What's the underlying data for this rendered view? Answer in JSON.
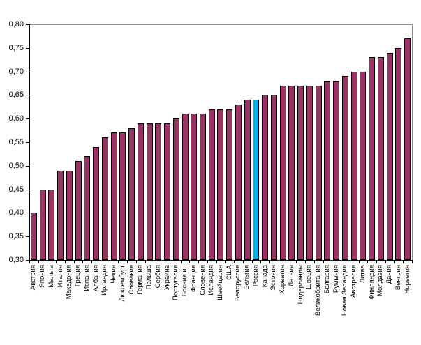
{
  "chart_data": {
    "type": "bar",
    "title": "",
    "xlabel": "",
    "ylabel": "",
    "categories": [
      "Австрия",
      "Япония",
      "Мальта",
      "Италия",
      "Македония",
      "Греция",
      "Испания",
      "Албания",
      "Ирландия",
      "Чехия",
      "Люксембург",
      "Словакия",
      "Германия",
      "Польша",
      "Сербия",
      "Украина",
      "Португалия",
      "Босния и..",
      "Франция",
      "Словения",
      "Исландия",
      "Швейцария",
      "США",
      "Белоруссия",
      "Бельгия",
      "Россия",
      "Канада",
      "Эстония",
      "Хорватия",
      "Латвия",
      "Нидерланды",
      "Швеция",
      "Великобритания",
      "Болгария",
      "Румыния",
      "Новая Зеландия",
      "Австралия",
      "Литва",
      "Финляндия",
      "Молдавия",
      "Дания",
      "Венгрия",
      "Норвегия"
    ],
    "values": [
      0.4,
      0.45,
      0.45,
      0.49,
      0.49,
      0.51,
      0.52,
      0.54,
      0.56,
      0.57,
      0.57,
      0.58,
      0.59,
      0.59,
      0.59,
      0.59,
      0.6,
      0.61,
      0.61,
      0.61,
      0.62,
      0.62,
      0.62,
      0.63,
      0.64,
      0.64,
      0.65,
      0.65,
      0.67,
      0.67,
      0.67,
      0.67,
      0.67,
      0.68,
      0.68,
      0.69,
      0.7,
      0.7,
      0.73,
      0.73,
      0.74,
      0.75,
      0.77
    ],
    "highlight": {
      "category": "Россия",
      "index": 25,
      "color": "#00B0F0"
    },
    "bar_color": "#993366",
    "bar_border_color": "#000000",
    "y_axis": {
      "min": 0.3,
      "max": 0.8,
      "tick_step": 0.05,
      "ticks": [
        {
          "value": 0.3,
          "label": "0,30"
        },
        {
          "value": 0.35,
          "label": "0,35"
        },
        {
          "value": 0.4,
          "label": "0,40"
        },
        {
          "value": 0.45,
          "label": "0,45"
        },
        {
          "value": 0.5,
          "label": "0,50"
        },
        {
          "value": 0.55,
          "label": "0,55"
        },
        {
          "value": 0.6,
          "label": "0,60"
        },
        {
          "value": 0.65,
          "label": "0,65"
        },
        {
          "value": 0.7,
          "label": "0,70"
        },
        {
          "value": 0.75,
          "label": "0,75"
        },
        {
          "value": 0.8,
          "label": "0,80"
        }
      ],
      "decimal_separator": ","
    },
    "layout": {
      "grid_top_line": true,
      "plot_right_border": true,
      "grid_color": "#8c8c8c",
      "legend": "none",
      "x_labels_rotated_degrees": 90
    }
  }
}
